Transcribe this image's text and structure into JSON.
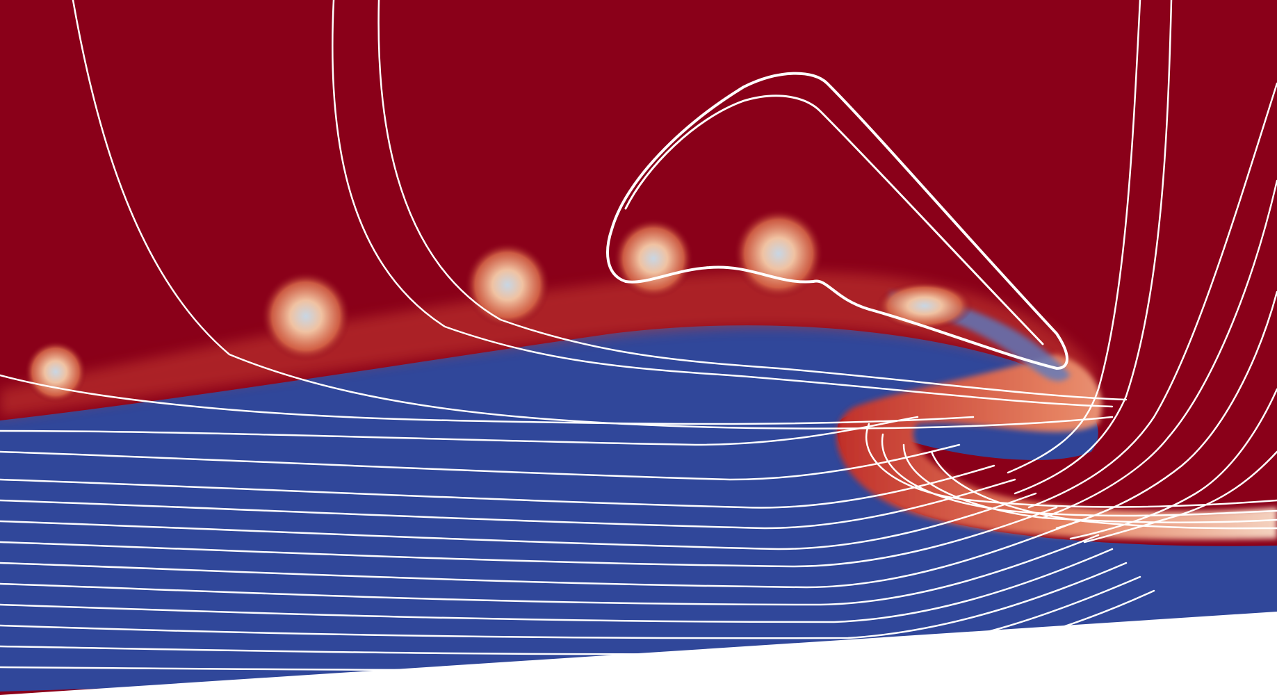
{
  "figure": {
    "colors": {
      "air": "#8a0019",
      "water": "#30479a",
      "mixing": "#e06a4a",
      "bubble_core": "#f0c8a8",
      "streamline": "#ffffff",
      "background": "#ffffff"
    }
  }
}
